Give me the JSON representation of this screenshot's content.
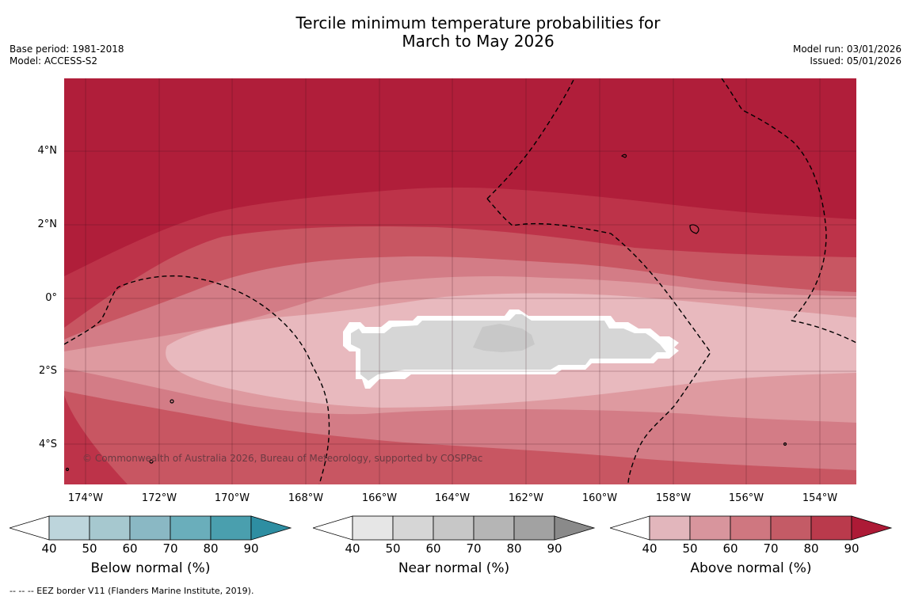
{
  "title": {
    "line1": "Tercile minimum temperature probabilities for",
    "line2": "March to May 2026"
  },
  "meta": {
    "base_period": "Base period: 1981-2018",
    "model": "Model: ACCESS-S2",
    "model_run": "Model run: 03/01/2026",
    "issued": "Issued: 05/01/2026"
  },
  "map": {
    "lat_labels": [
      "4°N",
      "2°N",
      "0°",
      "2°S",
      "4°S"
    ],
    "lon_labels": [
      "174°W",
      "172°W",
      "170°W",
      "168°W",
      "166°W",
      "164°W",
      "162°W",
      "160°W",
      "158°W",
      "156°W",
      "154°W"
    ],
    "copyright": "© Commonwealth of Australia 2026, Bureau of Meteorology, supported by COSPPac",
    "colors": {
      "above_90": "#b01e3a",
      "above_80": "#bd3349",
      "above_70": "#c85662",
      "above_60": "#d37c86",
      "above_50": "#de9aa0",
      "above_40": "#e8b9be",
      "near_40": "#d6d6d6",
      "near_50": "#c8c8c8"
    }
  },
  "legends": [
    {
      "title": "Below normal (%)",
      "ticks": [
        "40",
        "50",
        "60",
        "70",
        "80",
        "90"
      ],
      "colors": [
        "#bdd5dc",
        "#a6c8cf",
        "#8ab8c4",
        "#6aaebb",
        "#4a9fae",
        "#2e8ea2"
      ]
    },
    {
      "title": "Near normal (%)",
      "ticks": [
        "40",
        "50",
        "60",
        "70",
        "80",
        "90"
      ],
      "colors": [
        "#e6e6e6",
        "#d6d6d6",
        "#c7c7c7",
        "#b5b5b5",
        "#a2a2a2",
        "#8a8a8a"
      ]
    },
    {
      "title": "Above normal (%)",
      "ticks": [
        "40",
        "50",
        "60",
        "70",
        "80",
        "90"
      ],
      "colors": [
        "#e2b6bc",
        "#d8959d",
        "#cf7780",
        "#c45b66",
        "#ba3a4c",
        "#ad1a36"
      ]
    }
  ],
  "footer": "-- -- -- EEZ border V11 (Flanders Marine Institute, 2019)."
}
